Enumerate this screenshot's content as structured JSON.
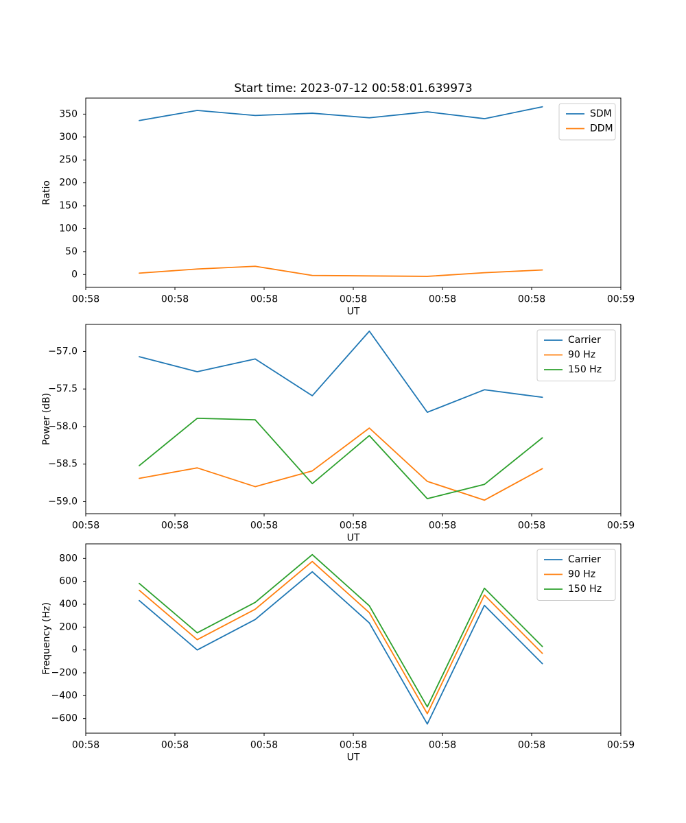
{
  "title": "Start time: 2023-07-12 00:58:01.639973",
  "palette": {
    "blue": "#1f77b4",
    "orange": "#ff7f0e",
    "green": "#2ca02c"
  },
  "chart_data": [
    {
      "type": "line",
      "ylabel": "Ratio",
      "xlabel": "UT",
      "x_seconds": [
        6,
        12.5,
        19,
        25.4,
        31.8,
        38.3,
        44.7,
        51.2
      ],
      "xlim": [
        0,
        60
      ],
      "ylim": [
        -28,
        385
      ],
      "xticks_seconds": [
        0,
        10,
        20,
        30,
        40,
        50,
        60
      ],
      "xtick_labels": [
        "00:58",
        "00:58",
        "00:58",
        "00:58",
        "00:58",
        "00:58",
        "00:59"
      ],
      "yticks": [
        0,
        50,
        100,
        150,
        200,
        250,
        300,
        350
      ],
      "ytick_labels": [
        "0",
        "50",
        "100",
        "150",
        "200",
        "250",
        "300",
        "350"
      ],
      "legend_position": "upper right",
      "grid": false,
      "series": [
        {
          "name": "SDM",
          "color": "#1f77b4",
          "values": [
            336,
            358,
            347,
            352,
            342,
            355,
            340,
            366
          ]
        },
        {
          "name": "DDM",
          "color": "#ff7f0e",
          "values": [
            3,
            12,
            18,
            -2,
            -3,
            -4,
            4,
            10
          ]
        }
      ]
    },
    {
      "type": "line",
      "ylabel": "Power (dB)",
      "xlabel": "UT",
      "x_seconds": [
        6,
        12.5,
        19,
        25.4,
        31.8,
        38.3,
        44.7,
        51.2
      ],
      "xlim": [
        0,
        60
      ],
      "ylim": [
        -59.16,
        -56.64
      ],
      "xticks_seconds": [
        0,
        10,
        20,
        30,
        40,
        50,
        60
      ],
      "xtick_labels": [
        "00:58",
        "00:58",
        "00:58",
        "00:58",
        "00:58",
        "00:58",
        "00:59"
      ],
      "yticks": [
        -59.0,
        -58.5,
        -58.0,
        -57.5,
        -57.0
      ],
      "ytick_labels": [
        "−59.0",
        "−58.5",
        "−58.0",
        "−57.5",
        "−57.0"
      ],
      "legend_position": "upper right",
      "grid": false,
      "series": [
        {
          "name": "Carrier",
          "color": "#1f77b4",
          "values": [
            -57.07,
            -57.27,
            -57.1,
            -57.59,
            -56.73,
            -57.81,
            -57.51,
            -57.61
          ]
        },
        {
          "name": "90 Hz",
          "color": "#ff7f0e",
          "values": [
            -58.69,
            -58.55,
            -58.8,
            -58.59,
            -58.02,
            -58.73,
            -58.98,
            -58.56
          ]
        },
        {
          "name": "150 Hz",
          "color": "#2ca02c",
          "values": [
            -58.52,
            -57.89,
            -57.91,
            -58.76,
            -58.12,
            -58.96,
            -58.77,
            -58.15
          ]
        }
      ]
    },
    {
      "type": "line",
      "ylabel": "Frequency (Hz)",
      "xlabel": "UT",
      "x_seconds": [
        6,
        12.5,
        19,
        25.4,
        31.8,
        38.3,
        44.7,
        51.2
      ],
      "xlim": [
        0,
        60
      ],
      "ylim": [
        -728,
        928
      ],
      "xticks_seconds": [
        0,
        10,
        20,
        30,
        40,
        50,
        60
      ],
      "xtick_labels": [
        "00:58",
        "00:58",
        "00:58",
        "00:58",
        "00:58",
        "00:58",
        "00:59"
      ],
      "yticks": [
        -600,
        -400,
        -200,
        0,
        200,
        400,
        600,
        800
      ],
      "ytick_labels": [
        "−600",
        "−400",
        "−200",
        "0",
        "200",
        "400",
        "600",
        "800"
      ],
      "legend_position": "upper right",
      "grid": false,
      "series": [
        {
          "name": "Carrier",
          "color": "#1f77b4",
          "values": [
            432,
            0,
            266,
            684,
            236,
            -648,
            390,
            -120
          ]
        },
        {
          "name": "90 Hz",
          "color": "#ff7f0e",
          "values": [
            522,
            90,
            356,
            774,
            326,
            -558,
            480,
            -30
          ]
        },
        {
          "name": "150 Hz",
          "color": "#2ca02c",
          "values": [
            582,
            150,
            416,
            834,
            386,
            -498,
            540,
            30
          ]
        }
      ]
    }
  ]
}
